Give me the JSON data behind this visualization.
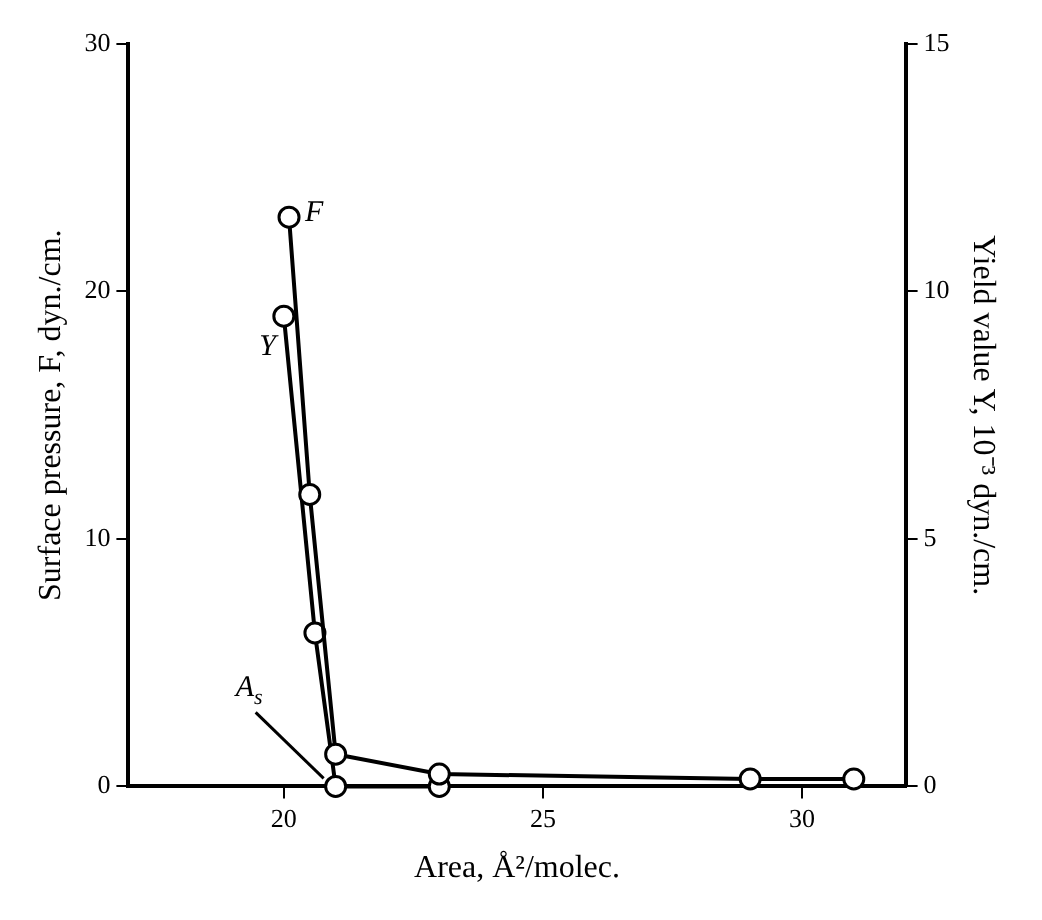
{
  "chart_data": {
    "type": "line",
    "xlabel": "Area, Å²/molec.",
    "ylabel": "Surface pressure, F, dyn./cm.",
    "y2label": "Yield value Y, 10⁻³ dyn./cm.",
    "series": [
      {
        "name": "F",
        "color": "#000000",
        "x": [
          20.1,
          20.5,
          21.0,
          23.0,
          29.0,
          31.0
        ],
        "values": [
          23,
          11.8,
          1.3,
          0.5,
          0.3,
          0.3
        ]
      },
      {
        "name": "Y",
        "color": "#000000",
        "axis": "y2",
        "x": [
          20.0,
          20.6,
          21.0,
          23.0
        ],
        "values": [
          9.5,
          3.1,
          0,
          0
        ]
      }
    ],
    "xlim": [
      17,
      32
    ],
    "xticks": [
      20,
      25,
      30
    ],
    "ylim": [
      0,
      30
    ],
    "yticks": [
      0,
      10,
      20,
      30
    ],
    "y2lim": [
      0,
      15
    ],
    "y2ticks": [
      0,
      5,
      10,
      15
    ],
    "annotations": [
      {
        "text": "A$_{s}$",
        "x": 21.0,
        "y": 0
      }
    ],
    "grid": false,
    "legend": false,
    "marker": "circle",
    "line_style": "solid"
  }
}
